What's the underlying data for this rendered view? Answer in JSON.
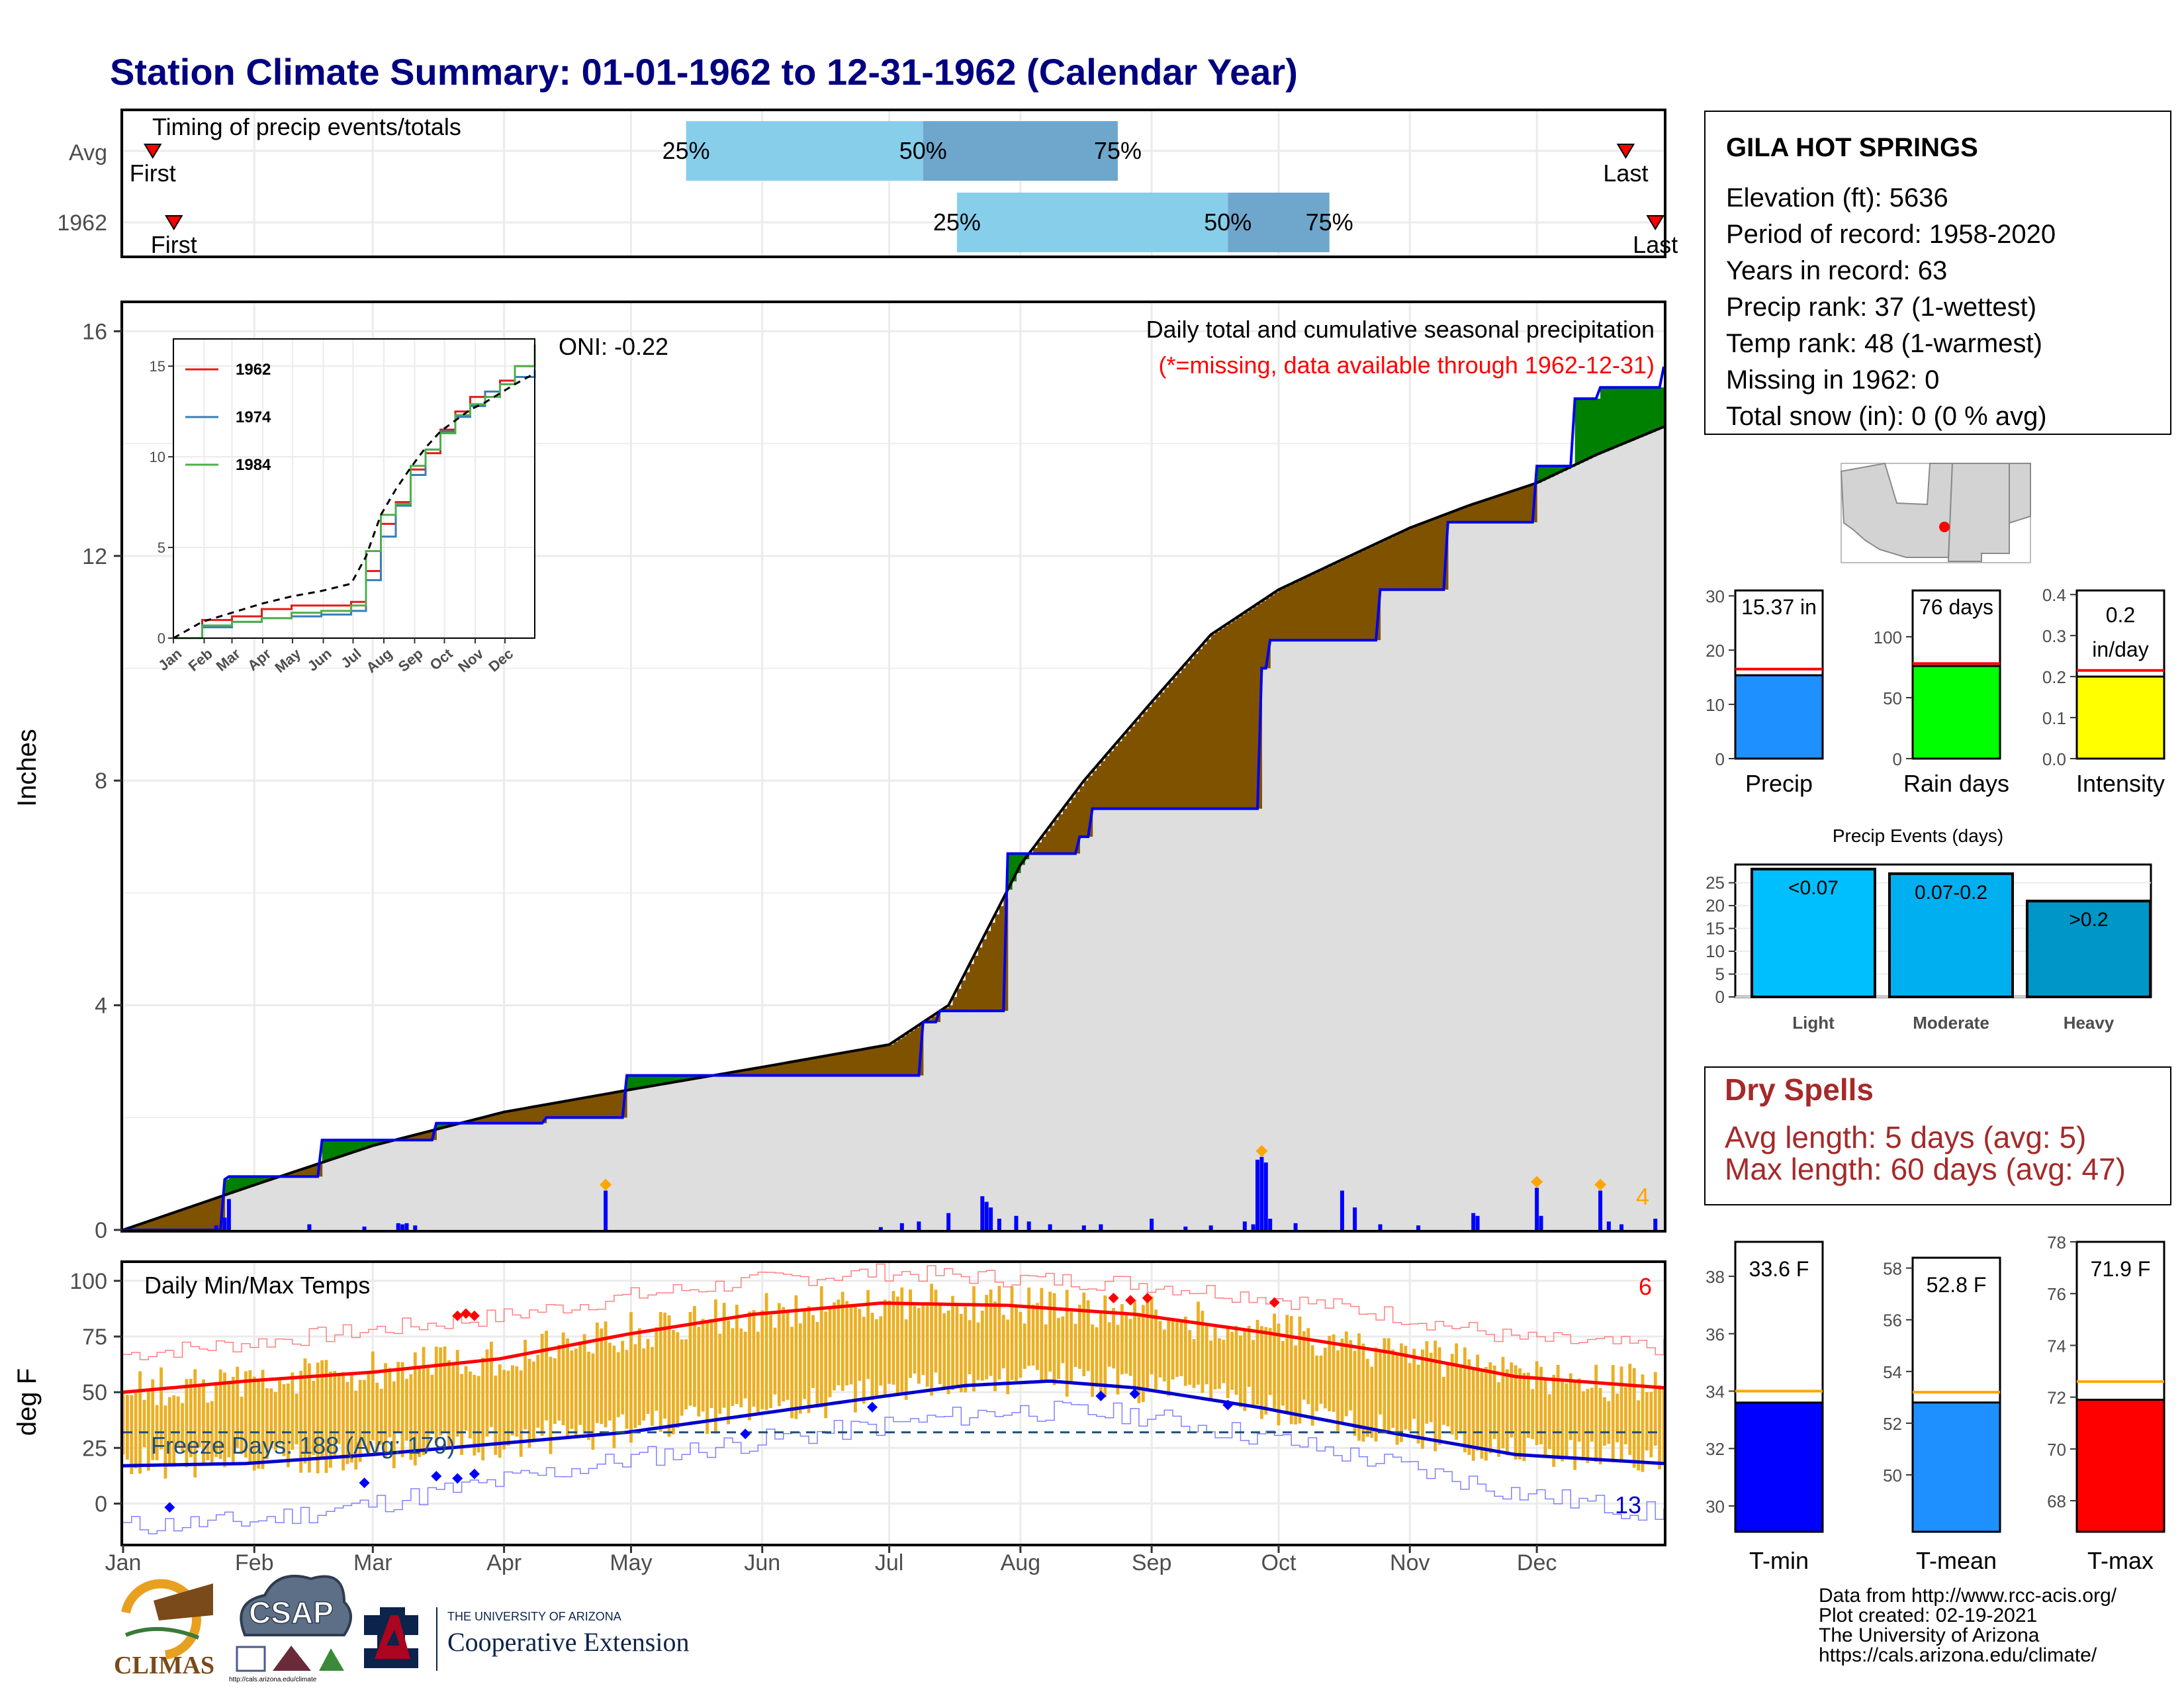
{
  "page": {
    "title": "Station Climate Summary: 01-01-1962 to 12-31-1962 (Calendar Year)"
  },
  "colors": {
    "title": "#000080",
    "deficit": "#7f5200",
    "surplus": "#008000",
    "avg_line": "#000000",
    "year_line": "#0000ee",
    "daily_bars": "#0000ff",
    "missing_note": "#ff0000",
    "timing_light": "#87ceeb",
    "timing_dark": "#6fa6cc",
    "temp_bars": "#ebaf23",
    "tmax_avg": "#ff0000",
    "tmin_avg": "#0000cd",
    "precip_bar": "#1e90ff",
    "raindays_bar": "#00ff00",
    "intensity_bar": "#ffff00",
    "events_light": "#00bfff",
    "events_moderate": "#00aff0",
    "events_heavy": "#0096c8",
    "dry_spells": "#a52a2a",
    "tmin_bar": "#0000ff",
    "tmean_bar": "#1e90ff",
    "tmax_bar": "#ff0000"
  },
  "timing": {
    "title": "Timing of precip events/totals",
    "rows": [
      {
        "label": "Avg",
        "first": "First",
        "last": "Last",
        "first_day": 8,
        "last_day": 356,
        "q25_day": 134,
        "q50_day": 190,
        "q75_day": 236,
        "q25_label": "25%",
        "q50_label": "50%",
        "q75_label": "75%"
      },
      {
        "label": "1962",
        "first": "First",
        "last": "Last",
        "first_day": 13,
        "last_day": 363,
        "q25_day": 198,
        "q50_day": 262,
        "q75_day": 286,
        "q25_label": "25%",
        "q50_label": "50%",
        "q75_label": "75%"
      }
    ]
  },
  "precip_panel": {
    "ylabel": "Inches",
    "title": "Daily total and cumulative seasonal precipitation",
    "missing_note": "(*=missing, data available through 1962-12-31)",
    "oni": "ONI: -0.22",
    "extreme_count": "4"
  },
  "inset": {
    "series": [
      {
        "name": "1962",
        "color": "#e41a1c"
      },
      {
        "name": "1974",
        "color": "#377eb8"
      },
      {
        "name": "1984",
        "color": "#4daf4a"
      }
    ]
  },
  "temp_panel": {
    "ylabel": "deg F",
    "title": "Daily Min/Max Temps",
    "freeze_days": "Freeze Days: 188 (Avg: 179)",
    "hot_count": "6",
    "cold_count": "13"
  },
  "station": {
    "name": "GILA HOT SPRINGS",
    "lines": [
      "Elevation (ft): 5636",
      "Period of record: 1958-2020",
      "Years in record: 63",
      "Precip rank: 37 (1-wettest)",
      "Temp rank: 48 (1-warmest)",
      "Missing in 1962: 0",
      "Total snow (in): 0 (0 % avg)"
    ]
  },
  "summary_bars": {
    "precip": {
      "label": "Precip",
      "value": 15.37,
      "text": "15.37 in",
      "avg": 16.5,
      "ymax": 31,
      "ticks": [
        "0",
        "10",
        "20",
        "30"
      ],
      "tickvals": [
        0,
        10,
        20,
        30
      ]
    },
    "rain_days": {
      "label": "Rain days",
      "value": 76,
      "text": "76 days",
      "avg": 78,
      "ymax": 138,
      "ticks": [
        "0",
        "50",
        "100"
      ],
      "tickvals": [
        0,
        50,
        100
      ]
    },
    "intensity": {
      "label": "Intensity",
      "value": 0.2,
      "text": "0.2",
      "text2": "in/day",
      "avg": 0.215,
      "ymax": 0.41,
      "ticks": [
        "0.0",
        "0.1",
        "0.2",
        "0.3",
        "0.4"
      ],
      "tickvals": [
        0,
        0.1,
        0.2,
        0.3,
        0.4
      ]
    }
  },
  "events": {
    "title": "Precip Events (days)",
    "ticks": [
      "0",
      "5",
      "10",
      "15",
      "20",
      "25"
    ],
    "tickvals": [
      0,
      5,
      10,
      15,
      20,
      25
    ],
    "ymax": 29,
    "categories": [
      {
        "label": "Light",
        "value": 28,
        "text": "<0.07"
      },
      {
        "label": "Moderate",
        "value": 27,
        "text": "0.07-0.2"
      },
      {
        "label": "Heavy",
        "value": 21,
        "text": ">0.2"
      }
    ]
  },
  "dry_spells": {
    "title": "Dry Spells",
    "avg_line": "Avg length: 5 days (avg: 5)",
    "max_line": "Max length: 60 days (avg: 47)"
  },
  "temp_bars": {
    "tmin": {
      "label": "T-min",
      "value": 33.6,
      "text": "33.6 F",
      "avg": 34.0,
      "ymin": 29.1,
      "ymax": 39.2,
      "ticks": [
        "30",
        "32",
        "34",
        "36",
        "38"
      ],
      "tickvals": [
        30,
        32,
        34,
        36,
        38
      ]
    },
    "tmean": {
      "label": "T-mean",
      "value": 52.8,
      "text": "52.8 F",
      "avg": 53.2,
      "ymin": 47.8,
      "ymax": 58.4,
      "ticks": [
        "50",
        "52",
        "54",
        "56",
        "58"
      ],
      "tickvals": [
        50,
        52,
        54,
        56,
        58
      ]
    },
    "tmax": {
      "label": "T-max",
      "value": 71.9,
      "text": "71.9 F",
      "avg": 72.6,
      "ymin": 66.8,
      "ymax": 78.0,
      "ticks": [
        "68",
        "70",
        "72",
        "74",
        "76",
        "78"
      ],
      "tickvals": [
        68,
        70,
        72,
        74,
        76,
        78
      ]
    }
  },
  "credits": [
    "Data from http://www.rcc-acis.org/",
    "Plot created: 02-19-2021",
    "The University of Arizona",
    "https://cals.arizona.edu/climate/"
  ],
  "logos": {
    "climas": "CLIMAS",
    "csap": "CSAP",
    "csap_url": "http://cals.arizona.edu/climate",
    "ua_small": "THE UNIVERSITY OF ARIZONA",
    "ua_big": "Cooperative Extension"
  },
  "chart_data": [
    {
      "type": "area",
      "title": "Daily total and cumulative seasonal precipitation",
      "ylabel": "Inches",
      "ylim": [
        0,
        16.5
      ],
      "yticks": [
        0,
        4,
        8,
        12,
        16
      ],
      "months": [
        "Jan",
        "Feb",
        "Mar",
        "Apr",
        "May",
        "Jun",
        "Jul",
        "Aug",
        "Sep",
        "Oct",
        "Nov",
        "Dec"
      ],
      "avg_cumulative": {
        "day": [
          1,
          32,
          60,
          91,
          121,
          152,
          182,
          196,
          213,
          228,
          244,
          258,
          274,
          288,
          305,
          319,
          335,
          349,
          365
        ],
        "inches": [
          0,
          0.8,
          1.5,
          2.1,
          2.5,
          2.9,
          3.3,
          4.0,
          6.5,
          8.0,
          9.4,
          10.6,
          11.4,
          11.9,
          12.5,
          12.9,
          13.3,
          13.8,
          14.3
        ]
      },
      "year_1962_cumulative": {
        "day": [
          1,
          25,
          26,
          48,
          75,
          101,
          120,
          190,
          194,
          210,
          227,
          230,
          270,
          272,
          298,
          314,
          335,
          344,
          350,
          365
        ],
        "inches": [
          0,
          0.9,
          0.95,
          1.6,
          1.9,
          2.0,
          2.75,
          3.7,
          3.9,
          6.7,
          7.0,
          7.5,
          10.0,
          10.5,
          11.4,
          12.6,
          13.6,
          14.8,
          15.0,
          15.37
        ]
      },
      "daily_totals": {
        "day": [
          23,
          25,
          26,
          45,
          58,
          66,
          67,
          68,
          70,
          115,
          180,
          185,
          189,
          196,
          204,
          205,
          206,
          208,
          212,
          215,
          220,
          228,
          232,
          244,
          252,
          258,
          266,
          268,
          269,
          270,
          271,
          272,
          278,
          289,
          292,
          298,
          307,
          320,
          321,
          335,
          336,
          350,
          352,
          355,
          363
        ],
        "inches": [
          0.08,
          0.22,
          0.55,
          0.1,
          0.06,
          0.12,
          0.1,
          0.12,
          0.08,
          0.7,
          0.05,
          0.12,
          0.15,
          0.3,
          0.6,
          0.5,
          0.4,
          0.2,
          0.25,
          0.15,
          0.1,
          0.08,
          0.1,
          0.2,
          0.06,
          0.08,
          0.15,
          0.1,
          1.25,
          1.3,
          1.2,
          0.2,
          0.12,
          0.7,
          0.4,
          0.1,
          0.08,
          0.3,
          0.25,
          0.75,
          0.25,
          0.7,
          0.15,
          0.1,
          0.2
        ]
      },
      "extremes": {
        "day": [
          115,
          270,
          335,
          350
        ],
        "label": "4"
      }
    },
    {
      "type": "line",
      "series": [
        {
          "name": "1962",
          "x": [
            1,
            30,
            60,
            90,
            120,
            150,
            180,
            195,
            210,
            225,
            240,
            255,
            270,
            285,
            300,
            315,
            330,
            345,
            365
          ],
          "y": [
            0,
            1.0,
            1.2,
            1.6,
            1.8,
            1.8,
            2.0,
            3.7,
            6.3,
            7.5,
            9.3,
            10.2,
            11.5,
            12.5,
            13.3,
            13.6,
            14.2,
            15.0,
            15.4
          ]
        },
        {
          "name": "1974",
          "x": [
            1,
            30,
            60,
            90,
            120,
            150,
            180,
            195,
            210,
            225,
            240,
            255,
            270,
            285,
            300,
            315,
            330,
            345,
            365
          ],
          "y": [
            0,
            0.6,
            0.9,
            1.1,
            1.2,
            1.3,
            1.5,
            3.2,
            5.6,
            7.3,
            9.0,
            10.4,
            11.4,
            12.2,
            12.8,
            13.6,
            14.0,
            14.4,
            14.8
          ]
        },
        {
          "name": "1984",
          "x": [
            1,
            30,
            60,
            90,
            120,
            150,
            180,
            195,
            210,
            225,
            240,
            255,
            270,
            285,
            300,
            315,
            330,
            345,
            365
          ],
          "y": [
            0,
            0.7,
            0.9,
            1.1,
            1.4,
            1.5,
            1.8,
            4.8,
            6.8,
            7.4,
            9.5,
            10.4,
            11.3,
            12.3,
            12.9,
            13.3,
            14.0,
            15.0,
            16.2
          ]
        },
        {
          "name": "avg",
          "x": [
            1,
            30,
            60,
            90,
            120,
            150,
            180,
            195,
            210,
            225,
            240,
            255,
            270,
            285,
            300,
            315,
            330,
            345,
            365
          ],
          "y": [
            0,
            0.9,
            1.4,
            1.9,
            2.3,
            2.6,
            3.0,
            4.5,
            6.8,
            8.2,
            9.4,
            10.5,
            11.4,
            12.0,
            12.6,
            13.0,
            13.5,
            14.0,
            14.6
          ]
        }
      ],
      "xlabels": [
        "Jan",
        "Feb",
        "Mar",
        "Apr",
        "May",
        "Jun",
        "Jul",
        "Aug",
        "Sep",
        "Oct",
        "Nov",
        "Dec"
      ],
      "yticks": [
        0,
        5,
        10,
        15
      ],
      "ylim": [
        0,
        16.5
      ]
    },
    {
      "type": "bar",
      "title": "Daily Min/Max Temps",
      "ylabel": "deg F",
      "ylim": [
        -18,
        108
      ],
      "yticks": [
        0,
        25,
        50,
        75,
        100
      ],
      "freeze_threshold": 32,
      "tmax_avg": {
        "day": [
          1,
          30,
          60,
          90,
          120,
          150,
          180,
          210,
          240,
          270,
          300,
          330,
          365
        ],
        "f": [
          50,
          55,
          59,
          65,
          76,
          85,
          90,
          89,
          85,
          77,
          68,
          57,
          52
        ]
      },
      "tmin_avg": {
        "day": [
          1,
          30,
          60,
          90,
          120,
          150,
          180,
          200,
          220,
          240,
          270,
          300,
          330,
          365
        ],
        "f": [
          17,
          18,
          22,
          27,
          32,
          40,
          48,
          53,
          55,
          52,
          43,
          32,
          22,
          18
        ]
      },
      "tmax_record": {
        "day": [
          1,
          30,
          60,
          90,
          120,
          150,
          180,
          210,
          240,
          270,
          300,
          330,
          365
        ],
        "f": [
          67,
          72,
          78,
          84,
          93,
          100,
          104,
          101,
          99,
          93,
          85,
          74,
          70
        ]
      },
      "tmin_record": {
        "day": [
          1,
          30,
          60,
          90,
          120,
          150,
          180,
          210,
          240,
          270,
          300,
          330,
          365
        ],
        "f": [
          -10,
          -8,
          0,
          10,
          20,
          28,
          35,
          42,
          40,
          30,
          18,
          5,
          -5
        ]
      }
    }
  ]
}
